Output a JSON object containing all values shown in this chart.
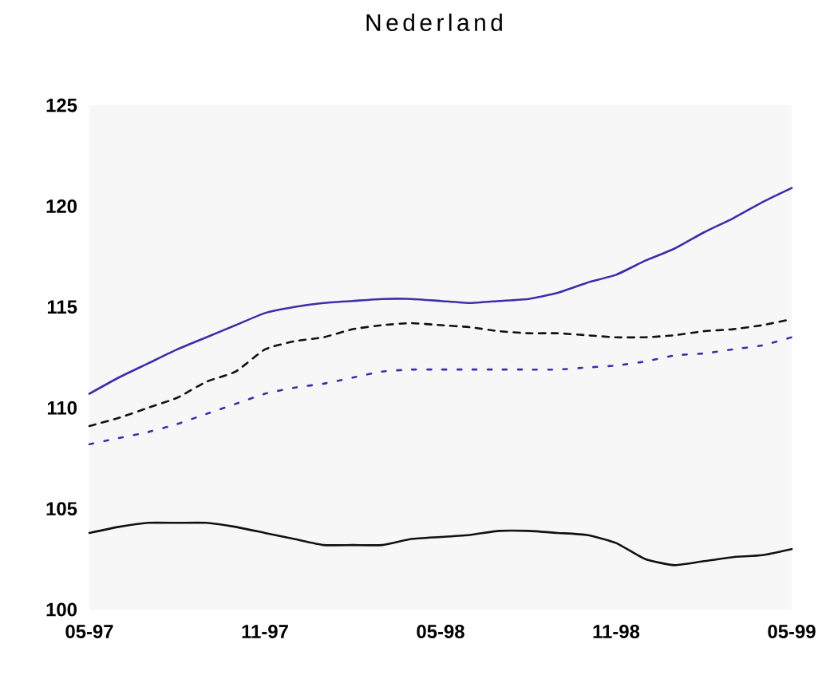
{
  "chart_data": {
    "type": "line",
    "title": "Nederland",
    "categories": [
      "05-97",
      null,
      null,
      null,
      null,
      null,
      "11-97",
      null,
      null,
      null,
      null,
      null,
      "05-98",
      null,
      null,
      null,
      null,
      null,
      "11-98",
      null,
      null,
      null,
      null,
      null,
      "05-99"
    ],
    "ylim": [
      100,
      125
    ],
    "yticks": [
      100,
      105,
      110,
      115,
      120,
      125
    ],
    "series": [
      {
        "color": "#3b30a8",
        "line_style": "solid",
        "values": [
          110.7,
          111.5,
          112.2,
          112.9,
          113.5,
          114.1,
          114.7,
          115.0,
          115.2,
          115.3,
          115.4,
          115.4,
          115.3,
          115.2,
          115.3,
          115.4,
          115.7,
          116.2,
          116.6,
          117.3,
          117.9,
          118.7,
          119.4,
          120.2,
          120.9
        ]
      },
      {
        "color": "#111111",
        "line_style": "dashed",
        "values": [
          109.1,
          109.5,
          110.0,
          110.5,
          111.3,
          111.8,
          112.9,
          113.3,
          113.5,
          113.9,
          114.1,
          114.2,
          114.1,
          114.0,
          113.8,
          113.7,
          113.7,
          113.6,
          113.5,
          113.5,
          113.6,
          113.8,
          113.9,
          114.1,
          114.4
        ]
      },
      {
        "color": "#3b30a8",
        "line_style": "dotted",
        "values": [
          108.2,
          108.5,
          108.8,
          109.2,
          109.7,
          110.2,
          110.7,
          111.0,
          111.2,
          111.5,
          111.8,
          111.9,
          111.9,
          111.9,
          111.9,
          111.9,
          111.9,
          112.0,
          112.1,
          112.3,
          112.6,
          112.7,
          112.9,
          113.1,
          113.5
        ]
      },
      {
        "color": "#111111",
        "line_style": "solid",
        "values": [
          103.8,
          104.1,
          104.3,
          104.3,
          104.3,
          104.1,
          103.8,
          103.5,
          103.2,
          103.2,
          103.2,
          103.5,
          103.6,
          103.7,
          103.9,
          103.9,
          103.8,
          103.7,
          103.3,
          102.5,
          102.2,
          102.4,
          102.6,
          102.7,
          103.0
        ]
      }
    ]
  }
}
